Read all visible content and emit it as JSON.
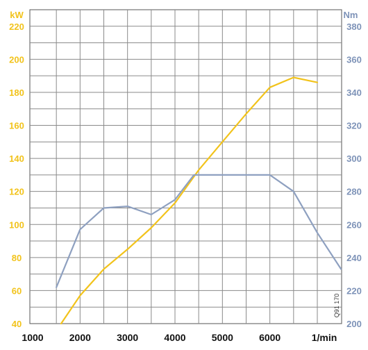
{
  "chart_data": {
    "type": "line",
    "x_tick_labels": [
      "1000",
      "2000",
      "3000",
      "4000",
      "5000",
      "6000",
      "1/min"
    ],
    "x_ticks": [
      1000,
      2000,
      3000,
      4000,
      5000,
      6000,
      7000
    ],
    "xlim": [
      1000,
      7000
    ],
    "left_axis": {
      "unit": "kW",
      "ylim": [
        40,
        230
      ],
      "ticks": [
        40,
        60,
        80,
        100,
        120,
        140,
        160,
        180,
        200,
        220
      ],
      "color": "#f2c31b"
    },
    "right_axis": {
      "unit": "Nm",
      "ylim": [
        200,
        390
      ],
      "ticks": [
        200,
        220,
        240,
        260,
        280,
        300,
        320,
        340,
        360,
        380
      ],
      "color": "#7e93b8"
    },
    "series": [
      {
        "axis": "left",
        "color": "#f2c31b",
        "x": [
          1600,
          2000,
          2500,
          3000,
          3500,
          4000,
          4500,
          5000,
          5500,
          6000,
          6500,
          7000
        ],
        "y": [
          40,
          57,
          73,
          85,
          98,
          113,
          133,
          150,
          167,
          183,
          189,
          186
        ]
      },
      {
        "axis": "right",
        "color": "#8ea0c0",
        "x": [
          1500,
          2000,
          2500,
          3000,
          3500,
          4000,
          4400,
          5000,
          5500,
          6000,
          6500,
          7000,
          7500
        ],
        "y": [
          222,
          257,
          270,
          271,
          266,
          275,
          290,
          290,
          290,
          290,
          280,
          255,
          233
        ]
      }
    ],
    "grid": true,
    "annotation": "Q91 170"
  }
}
